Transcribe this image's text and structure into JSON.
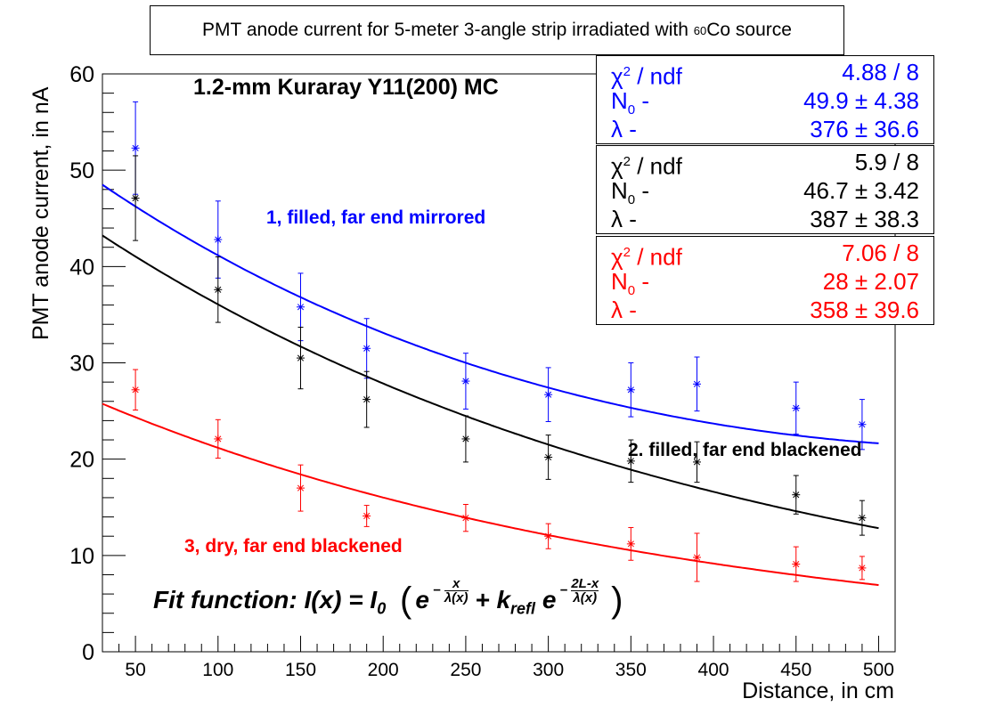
{
  "title_box": {
    "prefix": "PMT anode current for 5-meter 3-angle strip irradiated with ",
    "isotope_mass": "60",
    "isotope_symbol": "Co",
    "suffix": " source"
  },
  "chart_data": {
    "type": "scatter",
    "title": "1.2-mm Kuraray Y11(200) MC",
    "xlabel": "Distance, in cm",
    "ylabel": "PMT anode current, in nA",
    "xlim": [
      30,
      510
    ],
    "ylim": [
      0,
      60
    ],
    "xticks": [
      50,
      100,
      150,
      200,
      250,
      300,
      350,
      400,
      450,
      500
    ],
    "yticks": [
      0,
      10,
      20,
      30,
      40,
      50,
      60
    ],
    "x": [
      50,
      100,
      150,
      190,
      250,
      300,
      350,
      390,
      450,
      490
    ],
    "series": [
      {
        "name": "1, filled, far end mirrored",
        "color": "#0000ff",
        "values": [
          52.3,
          42.8,
          35.8,
          31.5,
          28.1,
          26.7,
          27.2,
          27.8,
          25.3,
          23.6
        ],
        "errors": [
          4.8,
          4.0,
          3.5,
          3.1,
          2.9,
          2.8,
          2.8,
          2.8,
          2.7,
          2.6
        ],
        "fit": {
          "L": 530,
          "lambda": 376,
          "N0": 49.9,
          "k": 0.75,
          "xmin": 30,
          "xmax": 500
        }
      },
      {
        "name": "2. filled, far end blackened",
        "color": "#000000",
        "values": [
          47.1,
          37.6,
          30.5,
          26.2,
          22.1,
          20.2,
          19.8,
          19.7,
          16.3,
          13.9
        ],
        "errors": [
          4.4,
          3.4,
          3.2,
          2.9,
          2.4,
          2.3,
          2.2,
          2.1,
          2.0,
          1.8
        ],
        "fit": {
          "L": 530,
          "lambda": 387,
          "N0": 46.7,
          "k": 0.0,
          "xmin": 30,
          "xmax": 500
        }
      },
      {
        "name": "3, dry, far end blackened",
        "color": "#ff0000",
        "values": [
          27.2,
          22.1,
          17.0,
          14.1,
          13.9,
          12.0,
          11.2,
          9.8,
          9.1,
          8.7
        ],
        "errors": [
          2.1,
          2.0,
          2.4,
          1.1,
          1.4,
          1.3,
          1.7,
          2.5,
          1.8,
          1.2
        ],
        "fit": {
          "L": 530,
          "lambda": 358,
          "N0": 28.0,
          "k": 0.0,
          "xmin": 30,
          "xmax": 500
        }
      }
    ],
    "stats": [
      {
        "color": "#0000ff",
        "chi2_label": "χ",
        "chi2_sup": "2",
        "chi2_rest": " / ndf",
        "chi2": "4.88 / 8",
        "n0_label": "N",
        "n0_sub": "0",
        "n0_rest": " -",
        "n0": "49.9 ± 4.38",
        "lambda_label": "λ -",
        "lambda": "376 ± 36.6"
      },
      {
        "color": "#000000",
        "chi2_label": "χ",
        "chi2_sup": "2",
        "chi2_rest": " / ndf",
        "chi2": "5.9 / 8",
        "n0_label": "N",
        "n0_sub": "0",
        "n0_rest": " -",
        "n0": "46.7 ± 3.42",
        "lambda_label": "λ -",
        "lambda": "387 ± 38.3"
      },
      {
        "color": "#ff0000",
        "chi2_label": "χ",
        "chi2_sup": "2",
        "chi2_rest": " / ndf",
        "chi2": "7.06 / 8",
        "n0_label": "N",
        "n0_sub": "0",
        "n0_rest": " -",
        "n0": "28 ± 2.07",
        "lambda_label": "λ -",
        "lambda": "358 ± 39.6"
      }
    ],
    "annotations": {
      "blue": "1, filled, far end mirrored",
      "black": "2. filled, far end blackened",
      "red": "3, dry, far end blackened"
    },
    "fit_function": {
      "prefix": "Fit function: I(x) = I",
      "sub0": "0",
      "e": "e",
      "minus": "−",
      "frac1_num": "x",
      "frac1_den": "λ(x)",
      "plus_k": "+ k",
      "k_sub": "refl",
      "frac2_num": "2L-x",
      "frac2_den": "λ(x)"
    }
  }
}
